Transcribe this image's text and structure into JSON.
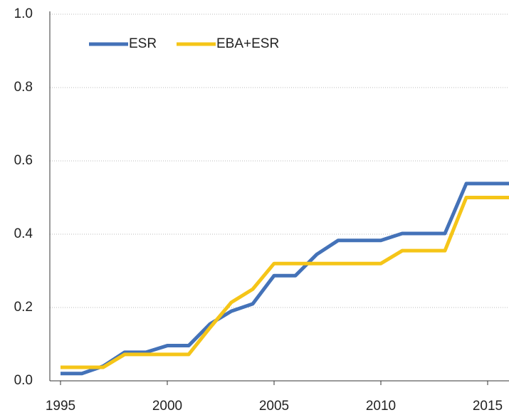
{
  "chart_data": {
    "type": "line",
    "x": [
      1995,
      1996,
      1997,
      1998,
      1999,
      2000,
      2001,
      2002,
      2003,
      2004,
      2005,
      2006,
      2007,
      2008,
      2009,
      2010,
      2011,
      2012,
      2013,
      2014,
      2015,
      2016
    ],
    "series": [
      {
        "name": "ESR",
        "color": "#4472b8",
        "values": [
          0.02,
          0.02,
          0.04,
          0.078,
          0.078,
          0.096,
          0.096,
          0.155,
          0.19,
          0.21,
          0.287,
          0.287,
          0.345,
          0.383,
          0.383,
          0.383,
          0.402,
          0.402,
          0.402,
          0.538,
          0.538,
          0.538
        ]
      },
      {
        "name": "EBA+ESR",
        "color": "#f5c518",
        "values": [
          0.037,
          0.037,
          0.037,
          0.072,
          0.072,
          0.072,
          0.072,
          0.145,
          0.214,
          0.25,
          0.32,
          0.32,
          0.32,
          0.32,
          0.32,
          0.32,
          0.355,
          0.355,
          0.355,
          0.5,
          0.5,
          0.5
        ]
      }
    ],
    "xlim": [
      1994.5,
      2016
    ],
    "xticks": [
      1995,
      2000,
      2005,
      2010,
      2015
    ],
    "ylim": [
      0,
      1
    ],
    "yticks": [
      {
        "value": 0,
        "label": "0.0"
      },
      0.2,
      0.4,
      0.6,
      0.8,
      {
        "value": 1,
        "label": "1.0"
      }
    ],
    "grid": true,
    "legend": "top-left"
  }
}
